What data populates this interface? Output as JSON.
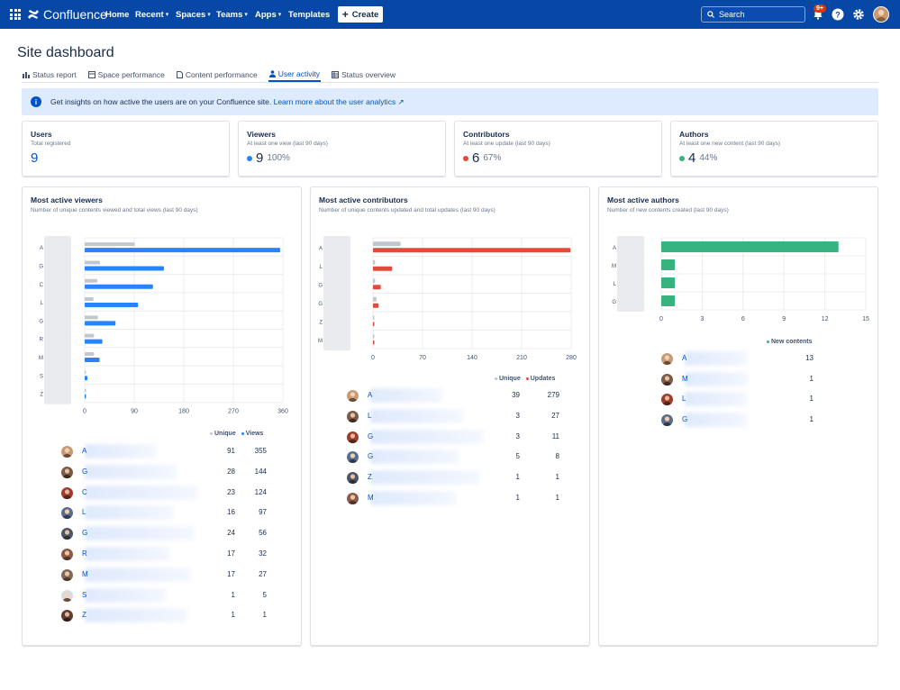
{
  "topbar": {
    "logo_text": "Confluence",
    "nav": [
      "Home",
      "Recent",
      "Spaces",
      "Teams",
      "Apps",
      "Templates"
    ],
    "create_label": "Create",
    "search_placeholder": "Search",
    "notification_badge": "9+",
    "brand_color": "#0747a6"
  },
  "page": {
    "title": "Site dashboard",
    "tabs": [
      {
        "label": "Status report",
        "icon": "bar-chart-icon",
        "active": false
      },
      {
        "label": "Space performance",
        "icon": "space-icon",
        "active": false
      },
      {
        "label": "Content performance",
        "icon": "page-icon",
        "active": false
      },
      {
        "label": "User activity",
        "icon": "person-icon",
        "active": true
      },
      {
        "label": "Status overview",
        "icon": "table-icon",
        "active": false
      }
    ],
    "info_text": "Get insights on how active the users are on your Confluence site.",
    "info_link": "Learn more about the user analytics ↗"
  },
  "stats": [
    {
      "title": "Users",
      "sub": "Total registered",
      "value": "9",
      "pct": "",
      "color": ""
    },
    {
      "title": "Viewers",
      "sub": "At least one view (last 90 days)",
      "value": "9",
      "pct": "100%",
      "color": "#2684ff"
    },
    {
      "title": "Contributors",
      "sub": "At least one update (last 90 days)",
      "value": "6",
      "pct": "67%",
      "color": "#e5493a"
    },
    {
      "title": "Authors",
      "sub": "At least one new content (last 90 days)",
      "value": "4",
      "pct": "44%",
      "color": "#36b37e"
    }
  ],
  "panels": {
    "viewers": {
      "title": "Most active viewers",
      "sub": "Number of unique contents viewed and total views (last 90 days)",
      "legend": [
        "Unique",
        "Views"
      ],
      "rows": [
        {
          "initial": "A",
          "c1": "91",
          "c2": "355"
        },
        {
          "initial": "G",
          "c1": "28",
          "c2": "144"
        },
        {
          "initial": "C",
          "c1": "23",
          "c2": "124"
        },
        {
          "initial": "L",
          "c1": "16",
          "c2": "97"
        },
        {
          "initial": "G",
          "c1": "24",
          "c2": "56"
        },
        {
          "initial": "R",
          "c1": "17",
          "c2": "32"
        },
        {
          "initial": "M",
          "c1": "17",
          "c2": "27"
        },
        {
          "initial": "S",
          "c1": "1",
          "c2": "5"
        },
        {
          "initial": "Z",
          "c1": "1",
          "c2": "1"
        }
      ]
    },
    "contributors": {
      "title": "Most active contributors",
      "sub": "Number of unique contents updated and total updates (last 90 days)",
      "legend": [
        "Unique",
        "Updates"
      ],
      "rows": [
        {
          "initial": "A",
          "c1": "39",
          "c2": "279"
        },
        {
          "initial": "L",
          "c1": "3",
          "c2": "27"
        },
        {
          "initial": "G",
          "c1": "3",
          "c2": "11"
        },
        {
          "initial": "G",
          "c1": "5",
          "c2": "8"
        },
        {
          "initial": "Z",
          "c1": "1",
          "c2": "1"
        },
        {
          "initial": "M",
          "c1": "1",
          "c2": "1"
        }
      ]
    },
    "authors": {
      "title": "Most active authors",
      "sub": "Number of new contents created (last 90 days)",
      "legend": [
        "New contents"
      ],
      "rows": [
        {
          "initial": "A",
          "c1": "13"
        },
        {
          "initial": "M",
          "c1": "1"
        },
        {
          "initial": "L",
          "c1": "1"
        },
        {
          "initial": "G",
          "c1": "1"
        }
      ]
    }
  },
  "chart_data": [
    {
      "type": "bar",
      "orientation": "horizontal",
      "categories": [
        "A",
        "G",
        "C",
        "L",
        "G",
        "R",
        "M",
        "S",
        "Z"
      ],
      "series": [
        {
          "name": "Unique",
          "color": "#c1c7d0",
          "values": [
            91,
            28,
            23,
            16,
            24,
            17,
            17,
            1,
            1
          ]
        },
        {
          "name": "Views",
          "color": "#2684ff",
          "values": [
            355,
            144,
            124,
            97,
            56,
            32,
            27,
            5,
            1
          ]
        }
      ],
      "xticks": [
        "0",
        "90",
        "180",
        "270",
        "360"
      ],
      "xlim": [
        0,
        360
      ]
    },
    {
      "type": "bar",
      "orientation": "horizontal",
      "categories": [
        "A",
        "L",
        "G",
        "G",
        "Z",
        "M"
      ],
      "series": [
        {
          "name": "Unique",
          "color": "#c1c7d0",
          "values": [
            39,
            3,
            3,
            5,
            1,
            1
          ]
        },
        {
          "name": "Updates",
          "color": "#e5493a",
          "values": [
            279,
            27,
            11,
            8,
            1,
            1
          ]
        }
      ],
      "xticks": [
        "0",
        "70",
        "140",
        "210",
        "280"
      ],
      "xlim": [
        0,
        280
      ]
    },
    {
      "type": "bar",
      "orientation": "horizontal",
      "categories": [
        "A",
        "M",
        "L",
        "G"
      ],
      "series": [
        {
          "name": "New contents",
          "color": "#36b37e",
          "values": [
            13,
            1,
            1,
            1
          ]
        }
      ],
      "xticks": [
        "0",
        "3",
        "6",
        "9",
        "12",
        "15"
      ],
      "xlim": [
        0,
        15
      ]
    }
  ]
}
